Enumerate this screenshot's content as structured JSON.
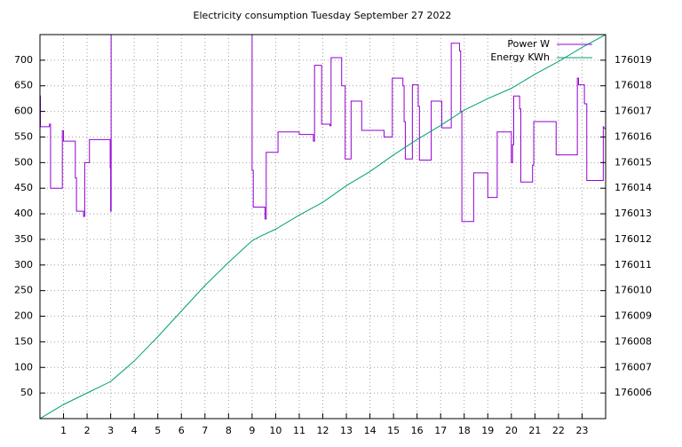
{
  "chart_data": {
    "type": "line",
    "title": "Electricity consumption Tuesday September 27 2022",
    "xlim": [
      0,
      24
    ],
    "xticks": [
      1,
      2,
      3,
      4,
      5,
      6,
      7,
      8,
      9,
      10,
      11,
      12,
      13,
      14,
      15,
      16,
      17,
      18,
      19,
      20,
      21,
      22,
      23
    ],
    "ylim": [
      0,
      750
    ],
    "yticks": [
      50,
      100,
      150,
      200,
      250,
      300,
      350,
      400,
      450,
      500,
      550,
      600,
      650,
      700
    ],
    "y2lim": [
      176005,
      176020
    ],
    "y2ticks": [
      176006,
      176007,
      176008,
      176009,
      176010,
      176011,
      176012,
      176013,
      176014,
      176015,
      176016,
      176017,
      176018,
      176019
    ],
    "grid": true,
    "legend": "top right",
    "series": [
      {
        "name": "Power W",
        "color": "#9400d3",
        "x": [
          0,
          0.02,
          0.02,
          0.4,
          0.4,
          0.45,
          0.45,
          0.95,
          0.95,
          1.0,
          1.0,
          1.5,
          1.5,
          1.55,
          1.55,
          1.85,
          1.85,
          1.9,
          1.9,
          2.1,
          2.1,
          2.98,
          2.98,
          3.0,
          3.0,
          3.02,
          3.02,
          6,
          9.0,
          9.0,
          9.05,
          9.05,
          9.55,
          9.55,
          9.6,
          9.6,
          10.1,
          10.1,
          11.0,
          11.0,
          11.6,
          11.6,
          11.65,
          11.65,
          11.95,
          11.95,
          12.3,
          12.3,
          12.35,
          12.35,
          12.8,
          12.8,
          12.95,
          12.95,
          13.2,
          13.2,
          13.65,
          13.65,
          14.6,
          14.6,
          14.95,
          14.95,
          15.4,
          15.4,
          15.45,
          15.45,
          15.5,
          15.5,
          15.8,
          15.8,
          16.05,
          16.05,
          16.1,
          16.1,
          16.6,
          16.6,
          17.05,
          17.05,
          17.45,
          17.45,
          17.8,
          17.8,
          17.85,
          17.85,
          17.9,
          17.9,
          18.4,
          18.4,
          19.0,
          19.0,
          19.4,
          19.4,
          20.0,
          20.0,
          20.05,
          20.05,
          20.1,
          20.1,
          20.35,
          20.35,
          20.4,
          20.4,
          20.9,
          20.9,
          20.95,
          20.95,
          21.9,
          21.9,
          22.8,
          22.8,
          22.85,
          22.85,
          23.1,
          23.1,
          23.2,
          23.2,
          23.9,
          23.9,
          24
        ],
        "values": [
          630,
          630,
          570,
          570,
          575,
          575,
          450,
          450,
          562,
          562,
          542,
          542,
          470,
          470,
          405,
          405,
          395,
          395,
          500,
          500,
          545,
          545,
          490,
          490,
          405,
          405,
          750,
          null,
          750,
          485,
          485,
          413,
          413,
          390,
          390,
          520,
          520,
          560,
          560,
          555,
          555,
          542,
          542,
          690,
          690,
          575,
          575,
          572,
          572,
          705,
          705,
          650,
          650,
          507,
          507,
          620,
          620,
          563,
          563,
          550,
          550,
          665,
          665,
          650,
          650,
          580,
          580,
          507,
          507,
          652,
          652,
          610,
          610,
          505,
          505,
          620,
          620,
          568,
          568,
          733,
          733,
          718,
          718,
          600,
          600,
          385,
          385,
          480,
          480,
          432,
          432,
          560,
          560,
          500,
          500,
          535,
          535,
          630,
          630,
          605,
          605,
          462,
          462,
          495,
          495,
          580,
          580,
          515,
          515,
          665,
          665,
          652,
          652,
          615,
          615,
          465,
          465,
          570,
          565
        ]
      },
      {
        "name": "Energy KWh",
        "color": "#009e73",
        "axis": "y2",
        "x": [
          0,
          1,
          2,
          3,
          4,
          5,
          6,
          7,
          8,
          9,
          9.3,
          10,
          11,
          12,
          13,
          14,
          15,
          16,
          17,
          18,
          19,
          20,
          21,
          22,
          23,
          24
        ],
        "values": [
          176005,
          176005.55,
          176006,
          176006.45,
          176007.25,
          176008.2,
          176009.2,
          176010.2,
          176011.1,
          176011.95,
          176012.1,
          176012.4,
          176012.95,
          176013.45,
          176014.1,
          176014.65,
          176015.3,
          176015.9,
          176016.45,
          176017.05,
          176017.5,
          176017.9,
          176018.45,
          176018.95,
          176019.5,
          176020
        ]
      }
    ]
  }
}
